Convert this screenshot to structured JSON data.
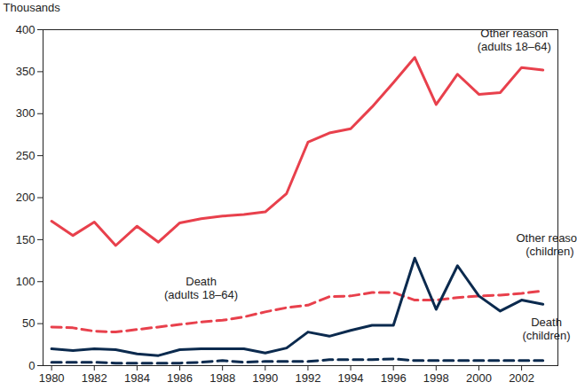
{
  "chart_data": {
    "type": "line",
    "y_label": "Thousands",
    "x": [
      1980,
      1981,
      1982,
      1983,
      1984,
      1985,
      1986,
      1987,
      1988,
      1989,
      1990,
      1991,
      1992,
      1993,
      1994,
      1995,
      1996,
      1997,
      1998,
      1999,
      2000,
      2001,
      2002,
      2003
    ],
    "xlim": [
      1979.6,
      2003.7
    ],
    "xticks": [
      1980,
      1982,
      1984,
      1986,
      1988,
      1990,
      1992,
      1994,
      1996,
      1998,
      2000,
      2002
    ],
    "ylim": [
      0,
      400
    ],
    "yticks": [
      0,
      50,
      100,
      150,
      200,
      250,
      300,
      350,
      400
    ],
    "grid": false,
    "series": [
      {
        "name": "Other reason (adults 18–64)",
        "color": "#e8404c",
        "line_style": "solid",
        "values": [
          172,
          155,
          171,
          143,
          166,
          147,
          170,
          175,
          178,
          180,
          183,
          205,
          266,
          277,
          282,
          308,
          337,
          367,
          311,
          347,
          323,
          325,
          355,
          352
        ]
      },
      {
        "name": "Death (adults 18–64)",
        "color": "#e8404c",
        "line_style": "dashed",
        "values": [
          46,
          45,
          41,
          40,
          43,
          46,
          49,
          52,
          54,
          58,
          64,
          69,
          72,
          82,
          83,
          87,
          87,
          78,
          78,
          81,
          83,
          84,
          86,
          89
        ]
      },
      {
        "name": "Other reason (children)",
        "color": "#0b2a4e",
        "line_style": "solid",
        "values": [
          20,
          18,
          20,
          19,
          14,
          12,
          19,
          20,
          20,
          20,
          15,
          21,
          40,
          35,
          42,
          48,
          48,
          128,
          67,
          119,
          83,
          65,
          78,
          73
        ]
      },
      {
        "name": "Death (children)",
        "color": "#0b2a4e",
        "line_style": "dashed",
        "values": [
          4,
          4,
          4,
          3,
          3,
          3,
          3,
          4,
          6,
          4,
          5,
          5,
          5,
          7,
          7,
          7,
          8,
          6,
          6,
          6,
          6,
          6,
          6,
          6
        ]
      }
    ]
  }
}
